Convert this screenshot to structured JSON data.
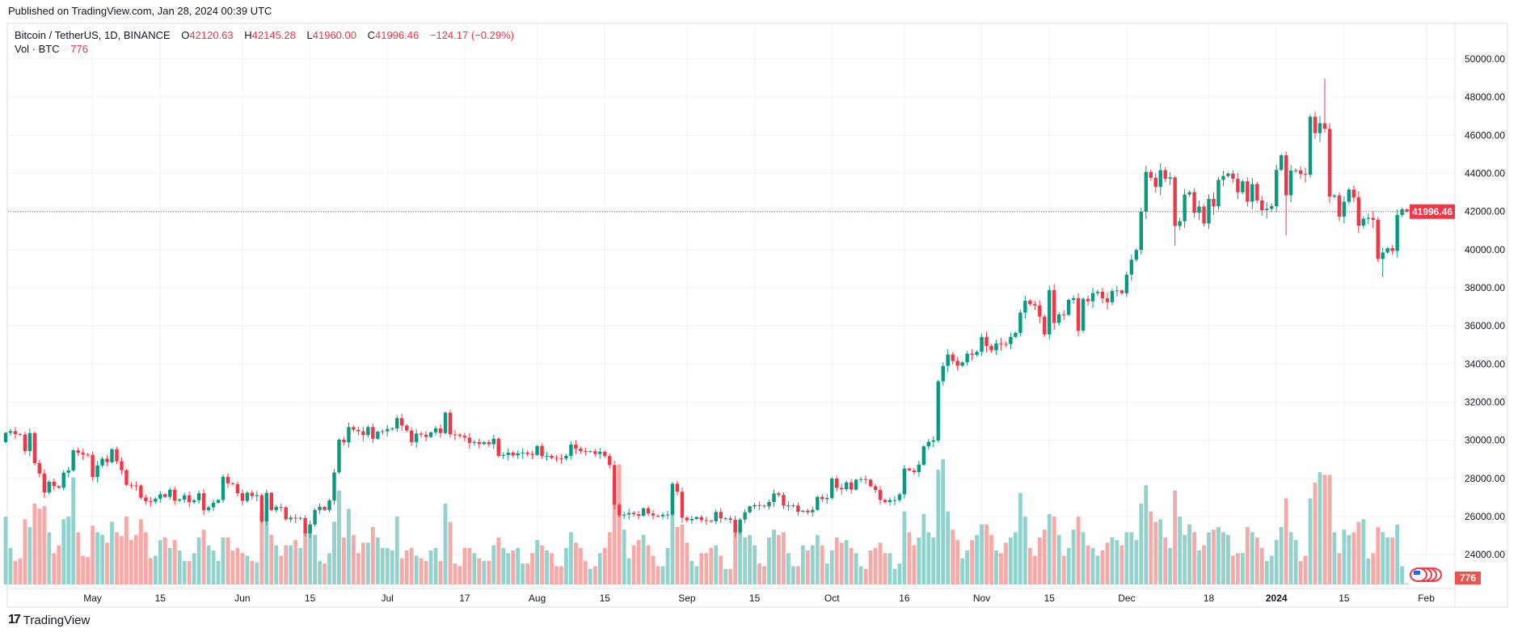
{
  "published": "Published on TradingView.com, Jan 28, 2024 00:39 UTC",
  "legend": {
    "symbol": "Bitcoin / TetherUS, 1D, BINANCE",
    "open_label": "O",
    "open": "42120.63",
    "high_label": "H",
    "high": "42145.28",
    "low_label": "L",
    "low": "41960.00",
    "close_label": "C",
    "close": "41996.46",
    "change": "−124.17 (−0.29%)",
    "vol_label": "Vol · BTC",
    "vol": "776"
  },
  "footer": {
    "logo_text": "TradingView"
  },
  "colors": {
    "up": "#089981",
    "down": "#F23645",
    "vol_up": "#92d2cc",
    "vol_down": "#f7a9a7",
    "grid": "#f0f3fa"
  },
  "chart_data": {
    "type": "candlestick",
    "title": "Bitcoin / TetherUS, 1D, BINANCE",
    "start_date": "2023-04-13",
    "interval": "1D",
    "ylim": [
      23000,
      51000
    ],
    "y_ticks": [
      "24000.00",
      "26000.00",
      "28000.00",
      "30000.00",
      "32000.00",
      "34000.00",
      "36000.00",
      "38000.00",
      "40000.00",
      "42000.00",
      "44000.00",
      "46000.00",
      "48000.00",
      "50000.00"
    ],
    "x_ticks": [
      {
        "label": "May",
        "date": "2023-05-01"
      },
      {
        "label": "15",
        "date": "2023-05-15"
      },
      {
        "label": "Jun",
        "date": "2023-06-01"
      },
      {
        "label": "15",
        "date": "2023-06-15"
      },
      {
        "label": "Jul",
        "date": "2023-07-01"
      },
      {
        "label": "17",
        "date": "2023-07-17"
      },
      {
        "label": "Aug",
        "date": "2023-08-01"
      },
      {
        "label": "15",
        "date": "2023-08-15"
      },
      {
        "label": "Sep",
        "date": "2023-09-01"
      },
      {
        "label": "15",
        "date": "2023-09-15"
      },
      {
        "label": "Oct",
        "date": "2023-10-01"
      },
      {
        "label": "16",
        "date": "2023-10-16"
      },
      {
        "label": "Nov",
        "date": "2023-11-01"
      },
      {
        "label": "15",
        "date": "2023-11-15"
      },
      {
        "label": "Dec",
        "date": "2023-12-01"
      },
      {
        "label": "18",
        "date": "2023-12-18"
      },
      {
        "label": "2024",
        "date": "2024-01-01",
        "bold": true
      },
      {
        "label": "15",
        "date": "2024-01-15"
      },
      {
        "label": "Feb",
        "date": "2024-02-01"
      }
    ],
    "first_open": 29900,
    "close": [
      30390,
      30480,
      30320,
      30300,
      29430,
      30380,
      28800,
      28250,
      27260,
      27820,
      27590,
      27510,
      28300,
      28420,
      29470,
      29340,
      29250,
      29230,
      28070,
      28680,
      29030,
      28850,
      29530,
      28900,
      28430,
      27660,
      27630,
      27620,
      26990,
      26800,
      26780,
      26930,
      27170,
      27030,
      27400,
      26830,
      26890,
      27110,
      26750,
      26850,
      27220,
      26330,
      26480,
      26720,
      26870,
      28080,
      27740,
      27700,
      27220,
      26820,
      27250,
      27070,
      27120,
      25740,
      27240,
      26340,
      26500,
      26480,
      25850,
      25940,
      25900,
      25920,
      25120,
      25580,
      26340,
      26510,
      26340,
      26840,
      28310,
      30030,
      29890,
      30690,
      30550,
      30470,
      30270,
      30690,
      30080,
      30450,
      30470,
      30590,
      30620,
      31160,
      30770,
      30510,
      29900,
      30350,
      30290,
      30170,
      30410,
      30620,
      30380,
      31450,
      30310,
      30290,
      30230,
      30140,
      29860,
      29910,
      29800,
      29900,
      29790,
      30080,
      29180,
      29230,
      29350,
      29210,
      29310,
      29350,
      29280,
      29230,
      29700,
      29170,
      29180,
      29080,
      29050,
      29040,
      29180,
      29770,
      29560,
      29430,
      29400,
      29420,
      29280,
      29400,
      29170,
      28700,
      26620,
      26050,
      26100,
      26190,
      26120,
      26040,
      26430,
      26160,
      26050,
      26010,
      26090,
      26100,
      27720,
      27300,
      25940,
      25800,
      25870,
      25970,
      25810,
      25780,
      25750,
      26240,
      25900,
      25900,
      25830,
      25160,
      25840,
      26220,
      26530,
      26600,
      26570,
      26530,
      26760,
      27210,
      27130,
      26570,
      26580,
      26580,
      26250,
      26300,
      26220,
      26350,
      27030,
      26910,
      26970,
      27990,
      27500,
      27430,
      27790,
      27410,
      27930,
      27960,
      27930,
      27590,
      27390,
      26870,
      26760,
      26860,
      26860,
      27160,
      28520,
      28420,
      28330,
      28720,
      29680,
      29920,
      29990,
      33090,
      33900,
      34500,
      34160,
      33910,
      34090,
      34540,
      34480,
      34640,
      35420,
      34940,
      34720,
      35080,
      35050,
      35040,
      35420,
      35630,
      36700,
      37320,
      37140,
      37070,
      36490,
      35550,
      37880,
      36160,
      36600,
      36580,
      37360,
      37450,
      35750,
      37420,
      37290,
      37720,
      37790,
      37450,
      37240,
      37830,
      37860,
      37710,
      38690,
      39470,
      39980,
      41990,
      44080,
      43770,
      43290,
      44170,
      43720,
      43790,
      41240,
      41490,
      42890,
      43020,
      41940,
      42260,
      41370,
      42660,
      42270,
      43660,
      43860,
      43990,
      43720,
      43010,
      43580,
      42520,
      43440,
      42580,
      42070,
      42140,
      42280,
      44180,
      44950,
      42850,
      44150,
      44160,
      43970,
      43930,
      46970,
      46110,
      46630,
      46340,
      42780,
      42840,
      41730,
      42510,
      43150,
      42740,
      41260,
      41620,
      41670,
      41560,
      39510,
      39850,
      40080,
      39930,
      41820,
      42120,
      41996.46
    ],
    "wick_overrides": [
      {
        "date": "2024-01-11",
        "high": 48970
      },
      {
        "date": "2024-01-23",
        "low": 38555
      },
      {
        "date": "2024-01-03",
        "low": 40750
      },
      {
        "date": "2023-12-11",
        "low": 40200
      },
      {
        "date": "2024-01-28",
        "high": 42145.28,
        "low": 41960.0
      }
    ],
    "volume_kbtc": [
      52,
      28,
      18,
      20,
      50,
      44,
      62,
      58,
      60,
      40,
      24,
      30,
      50,
      52,
      82,
      40,
      22,
      21,
      45,
      40,
      38,
      32,
      48,
      40,
      37,
      52,
      34,
      38,
      50,
      40,
      20,
      22,
      34,
      36,
      28,
      34,
      26,
      18,
      18,
      24,
      36,
      42,
      30,
      26,
      18,
      36,
      36,
      26,
      28,
      24,
      22,
      18,
      17,
      56,
      56,
      38,
      30,
      22,
      30,
      30,
      34,
      28,
      42,
      46,
      38,
      18,
      16,
      24,
      48,
      72,
      36,
      58,
      38,
      24,
      32,
      32,
      44,
      36,
      28,
      28,
      26,
      52,
      20,
      26,
      28,
      22,
      20,
      18,
      26,
      28,
      18,
      62,
      48,
      16,
      14,
      28,
      28,
      24,
      20,
      18,
      18,
      30,
      36,
      28,
      24,
      26,
      28,
      16,
      16,
      24,
      34,
      30,
      26,
      24,
      14,
      14,
      28,
      40,
      32,
      28,
      18,
      12,
      14,
      24,
      28,
      40,
      72,
      92,
      42,
      20,
      30,
      34,
      38,
      30,
      22,
      14,
      14,
      28,
      72,
      44,
      46,
      32,
      18,
      14,
      24,
      24,
      28,
      30,
      22,
      12,
      12,
      46,
      44,
      36,
      38,
      30,
      16,
      14,
      36,
      42,
      38,
      40,
      24,
      14,
      14,
      30,
      26,
      30,
      38,
      30,
      16,
      26,
      36,
      32,
      34,
      28,
      24,
      14,
      12,
      26,
      28,
      32,
      24,
      24,
      12,
      16,
      56,
      40,
      30,
      36,
      54,
      40,
      36,
      88,
      96,
      56,
      42,
      34,
      20,
      26,
      34,
      38,
      46,
      46,
      38,
      26,
      24,
      32,
      36,
      40,
      70,
      52,
      28,
      22,
      36,
      42,
      54,
      52,
      38,
      22,
      28,
      42,
      52,
      40,
      30,
      28,
      22,
      26,
      32,
      36,
      34,
      30,
      40,
      40,
      34,
      62,
      76,
      56,
      48,
      50,
      36,
      28,
      72,
      52,
      38,
      46,
      40,
      26,
      30,
      40,
      42,
      44,
      40,
      38,
      22,
      24,
      24,
      44,
      40,
      36,
      28,
      18,
      22,
      34,
      44,
      66,
      40,
      34,
      18,
      22,
      66,
      78,
      86,
      84,
      84,
      40,
      24,
      42,
      38,
      40,
      48,
      50,
      20,
      24,
      44,
      40,
      36,
      36,
      46,
      14,
      0.776
    ],
    "last_price_label": "41996.46",
    "last_volume_label": "776"
  }
}
